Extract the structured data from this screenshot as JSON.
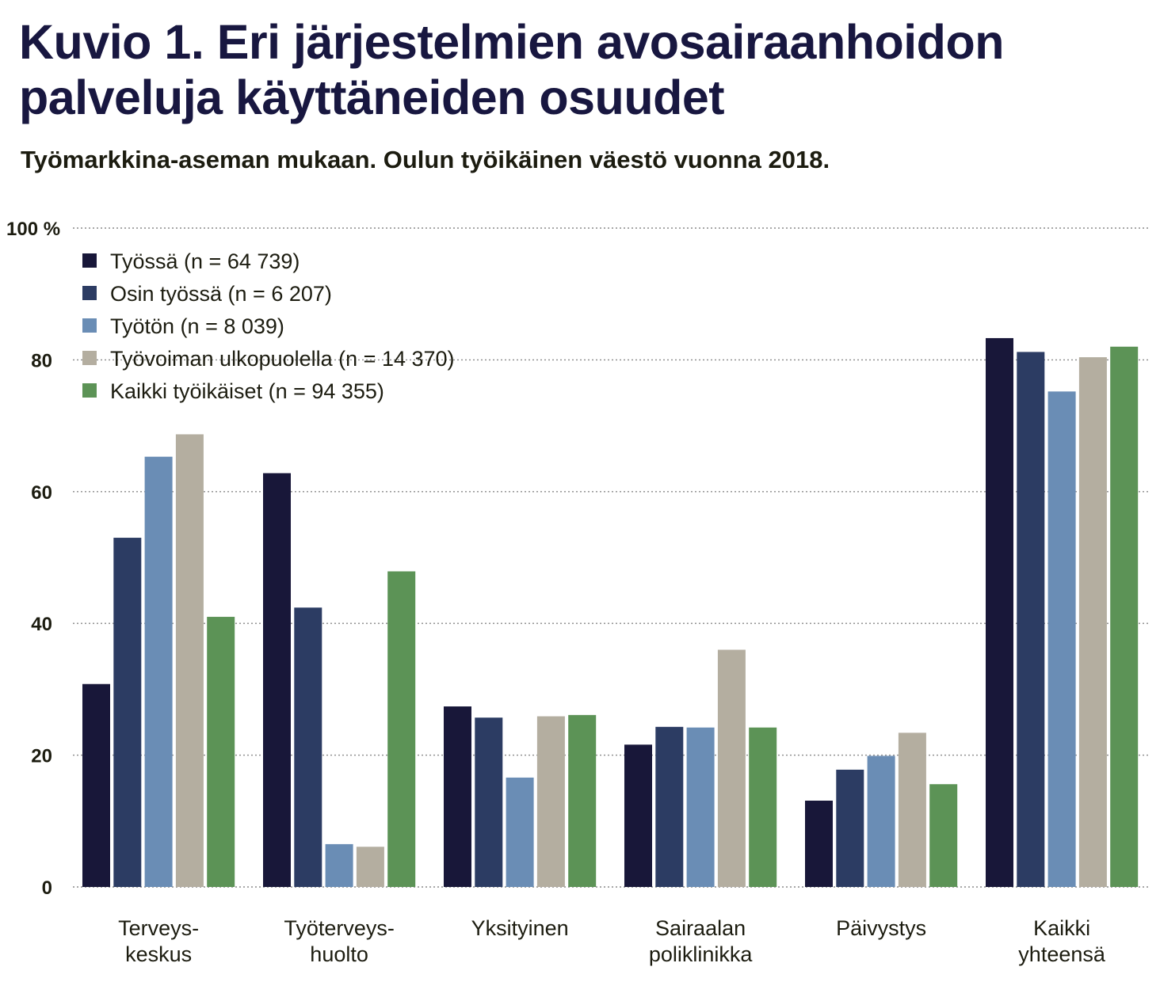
{
  "title_lines": [
    "Kuvio 1. Eri järjestelmien avosairaanhoidon",
    "palveluja käyttäneiden osuudet"
  ],
  "subtitle": "Työmarkkina-aseman mukaan. Oulun työikäinen väestö vuonna 2018.",
  "chart_data": {
    "type": "bar",
    "categories": [
      [
        "Terveys-",
        "keskus"
      ],
      [
        "Työterveys-",
        "huolto"
      ],
      [
        "Yksityinen"
      ],
      [
        "Sairaalan",
        "poliklinikka"
      ],
      [
        "Päivystys"
      ],
      [
        "Kaikki",
        "yhteensä"
      ]
    ],
    "series": [
      {
        "name": "Työssä (n = 64 739)",
        "color": "#181739",
        "values": [
          30.8,
          62.8,
          27.4,
          21.6,
          13.1,
          83.3
        ]
      },
      {
        "name": "Osin työssä (n = 6 207)",
        "color": "#2c3c63",
        "values": [
          53.0,
          42.4,
          25.7,
          24.3,
          17.8,
          81.2
        ]
      },
      {
        "name": "Työtön (n = 8 039)",
        "color": "#6a8db5",
        "values": [
          65.3,
          6.5,
          16.6,
          24.2,
          19.9,
          75.2
        ]
      },
      {
        "name": "Työvoiman ulkopuolella (n = 14 370)",
        "color": "#b4aea0",
        "values": [
          68.7,
          6.1,
          25.9,
          36.0,
          23.4,
          80.4
        ]
      },
      {
        "name": "Kaikki työikäiset (n = 94 355)",
        "color": "#5c9356",
        "values": [
          41.0,
          47.9,
          26.1,
          24.2,
          15.6,
          82.0
        ]
      }
    ],
    "y_ticks": [
      "0",
      "20",
      "40",
      "60",
      "80",
      "100 %"
    ],
    "ylim": [
      0,
      100
    ],
    "grid": "dotted horizontal",
    "legend_position": "top-left"
  }
}
